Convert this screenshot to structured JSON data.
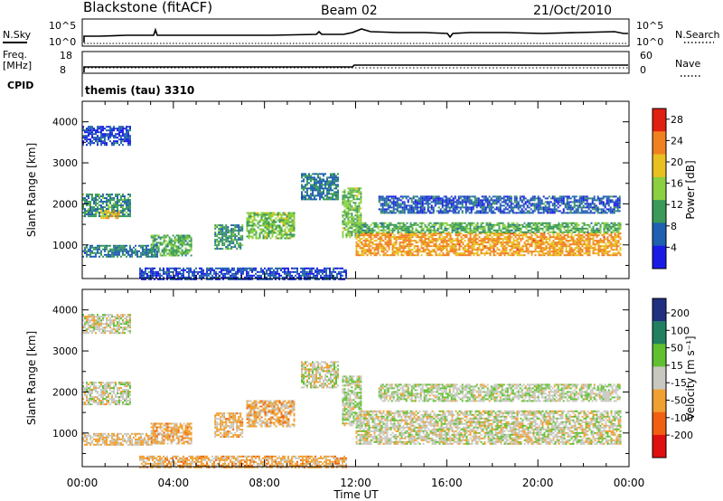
{
  "header": {
    "station": "Blackstone (fitACF)",
    "beam": "Beam 02",
    "date": "21/Oct/2010"
  },
  "noise_panel": {
    "left_label": "N.Sky",
    "right_label": "N.Search",
    "left_ticks": [
      "10^5",
      "10^0"
    ],
    "right_ticks": [
      "10^5",
      "10^0"
    ]
  },
  "freq_panel": {
    "left_label_line1": "Freq.",
    "left_label_line2": "[MHz]",
    "right_label": "Nave",
    "left_ticks": [
      "18",
      "8"
    ],
    "right_ticks": [
      "60",
      "0"
    ]
  },
  "cpid_panel": {
    "label": "CPID",
    "program": "themis (tau) 3310"
  },
  "x_axis": {
    "label": "Time UT",
    "ticks": [
      "00:00",
      "04:00",
      "08:00",
      "12:00",
      "16:00",
      "20:00",
      "00:00"
    ],
    "range_hours": [
      0,
      24
    ]
  },
  "y_axis": {
    "label": "Slant Range [km]",
    "ticks": [
      "1000",
      "2000",
      "3000",
      "4000"
    ],
    "range_km": [
      180,
      4500
    ]
  },
  "power_colorbar": {
    "label": "Power [dB]",
    "ticks": [
      "4",
      "8",
      "12",
      "16",
      "20",
      "24",
      "28"
    ]
  },
  "velocity_colorbar": {
    "label": "Velocity [m s⁻¹]",
    "ticks": [
      "200",
      "100",
      "50",
      "15",
      "-15",
      "-50",
      "-100",
      "-200"
    ]
  },
  "chart_data": [
    {
      "type": "heatmap",
      "title": "Power",
      "xlabel": "Time UT",
      "ylabel": "Slant Range [km]",
      "x_range_hours": [
        0,
        24
      ],
      "ylim": [
        180,
        4500
      ],
      "colorbar_range": [
        0,
        30
      ],
      "colors": [
        "#1a1ae6",
        "#2060b0",
        "#3a9a5a",
        "#8ad040",
        "#e8c020",
        "#f08020",
        "#e02010"
      ],
      "regions": [
        {
          "t0": 0.0,
          "t1": 2.1,
          "r0": 3450,
          "r1": 3900,
          "power": 5
        },
        {
          "t0": 0.0,
          "t1": 2.1,
          "r0": 1700,
          "r1": 2250,
          "power": 10
        },
        {
          "t0": 0.8,
          "t1": 1.6,
          "r0": 1650,
          "r1": 1850,
          "power": 20
        },
        {
          "t0": 0.0,
          "t1": 3.3,
          "r0": 700,
          "r1": 1000,
          "power": 8
        },
        {
          "t0": 3.0,
          "t1": 4.8,
          "r0": 750,
          "r1": 1250,
          "power": 12
        },
        {
          "t0": 5.8,
          "t1": 7.0,
          "r0": 900,
          "r1": 1500,
          "power": 10
        },
        {
          "t0": 7.2,
          "t1": 9.3,
          "r0": 1150,
          "r1": 1800,
          "power": 14
        },
        {
          "t0": 9.6,
          "t1": 11.2,
          "r0": 2100,
          "r1": 2750,
          "power": 8
        },
        {
          "t0": 11.4,
          "t1": 12.2,
          "r0": 1200,
          "r1": 2400,
          "power": 14
        },
        {
          "t0": 12.0,
          "t1": 23.6,
          "r0": 750,
          "r1": 1300,
          "power": 22
        },
        {
          "t0": 12.0,
          "t1": 23.6,
          "r0": 1300,
          "r1": 1550,
          "power": 12
        },
        {
          "t0": 13.0,
          "t1": 23.6,
          "r0": 1800,
          "r1": 2200,
          "power": 6
        },
        {
          "t0": 2.5,
          "t1": 11.6,
          "r0": 180,
          "r1": 450,
          "power": 5
        }
      ]
    },
    {
      "type": "heatmap",
      "title": "Velocity",
      "xlabel": "Time UT",
      "ylabel": "Slant Range [km]",
      "x_range_hours": [
        0,
        24
      ],
      "ylim": [
        180,
        4500
      ],
      "colorbar_range": [
        -250,
        250
      ],
      "colors": [
        "#e01010",
        "#f06010",
        "#f0a030",
        "#c8c8c0",
        "#60c030",
        "#208060",
        "#203080"
      ],
      "regions": [
        {
          "t0": 0.0,
          "t1": 2.1,
          "r0": 3450,
          "r1": 3900,
          "velocity": 0
        },
        {
          "t0": 0.0,
          "t1": 2.1,
          "r0": 1700,
          "r1": 2250,
          "velocity": 0
        },
        {
          "t0": 0.0,
          "t1": 3.3,
          "r0": 700,
          "r1": 1000,
          "velocity": -30
        },
        {
          "t0": 3.0,
          "t1": 4.8,
          "r0": 750,
          "r1": 1250,
          "velocity": -60
        },
        {
          "t0": 5.8,
          "t1": 7.0,
          "r0": 900,
          "r1": 1500,
          "velocity": -50
        },
        {
          "t0": 7.2,
          "t1": 9.3,
          "r0": 1150,
          "r1": 1800,
          "velocity": -60
        },
        {
          "t0": 9.6,
          "t1": 11.2,
          "r0": 2100,
          "r1": 2750,
          "velocity": 0
        },
        {
          "t0": 11.4,
          "t1": 12.2,
          "r0": 1200,
          "r1": 2400,
          "velocity": 20
        },
        {
          "t0": 12.0,
          "t1": 23.6,
          "r0": 750,
          "r1": 1550,
          "velocity": 0
        },
        {
          "t0": 13.0,
          "t1": 23.6,
          "r0": 1800,
          "r1": 2200,
          "velocity": 15
        },
        {
          "t0": 2.5,
          "t1": 11.6,
          "r0": 180,
          "r1": 450,
          "velocity": -60
        }
      ]
    }
  ]
}
